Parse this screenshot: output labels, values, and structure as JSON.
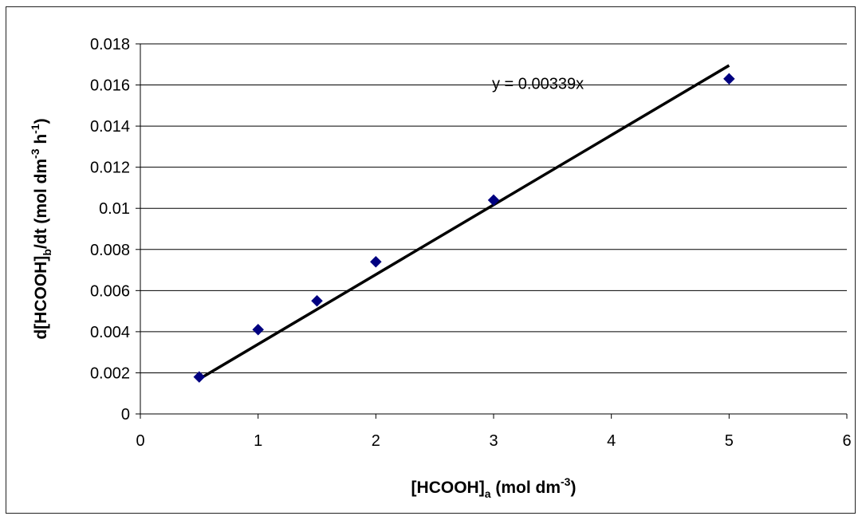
{
  "chart_data": {
    "type": "scatter",
    "title": "",
    "xlabel": {
      "main": "[HCOOH]",
      "sub": "a",
      "rest": " (mol dm",
      "sup": "-3",
      "close": ")"
    },
    "ylabel": {
      "main": "d[HCOOH]",
      "sub": "b",
      "rest": "/dt (mol dm",
      "sup1": "-3",
      "mid": " h",
      "sup2": "-1",
      "close": ")"
    },
    "xlim": [
      0,
      6
    ],
    "ylim": [
      0,
      0.018
    ],
    "xticks": [
      0,
      1,
      2,
      3,
      4,
      5,
      6
    ],
    "xtick_labels": [
      "0",
      "1",
      "2",
      "3",
      "4",
      "5",
      "6"
    ],
    "yticks": [
      0,
      0.002,
      0.004,
      0.006,
      0.008,
      0.01,
      0.012,
      0.014,
      0.016,
      0.018
    ],
    "ytick_labels": [
      "0",
      "0.002",
      "0.004",
      "0.006",
      "0.008",
      "0.01",
      "0.012",
      "0.014",
      "0.016",
      "0.018"
    ],
    "grid": "horizontal",
    "series": [
      {
        "marker": "diamond",
        "color": "#000080",
        "x": [
          0.5,
          1,
          1.5,
          2,
          3,
          5
        ],
        "y": [
          0.0018,
          0.0041,
          0.0055,
          0.0074,
          0.0104,
          0.0163
        ]
      }
    ],
    "trendline": {
      "slope": 0.00339,
      "x_range": [
        0.5,
        5
      ],
      "color": "#000000",
      "label": "y = 0.00339x"
    }
  }
}
